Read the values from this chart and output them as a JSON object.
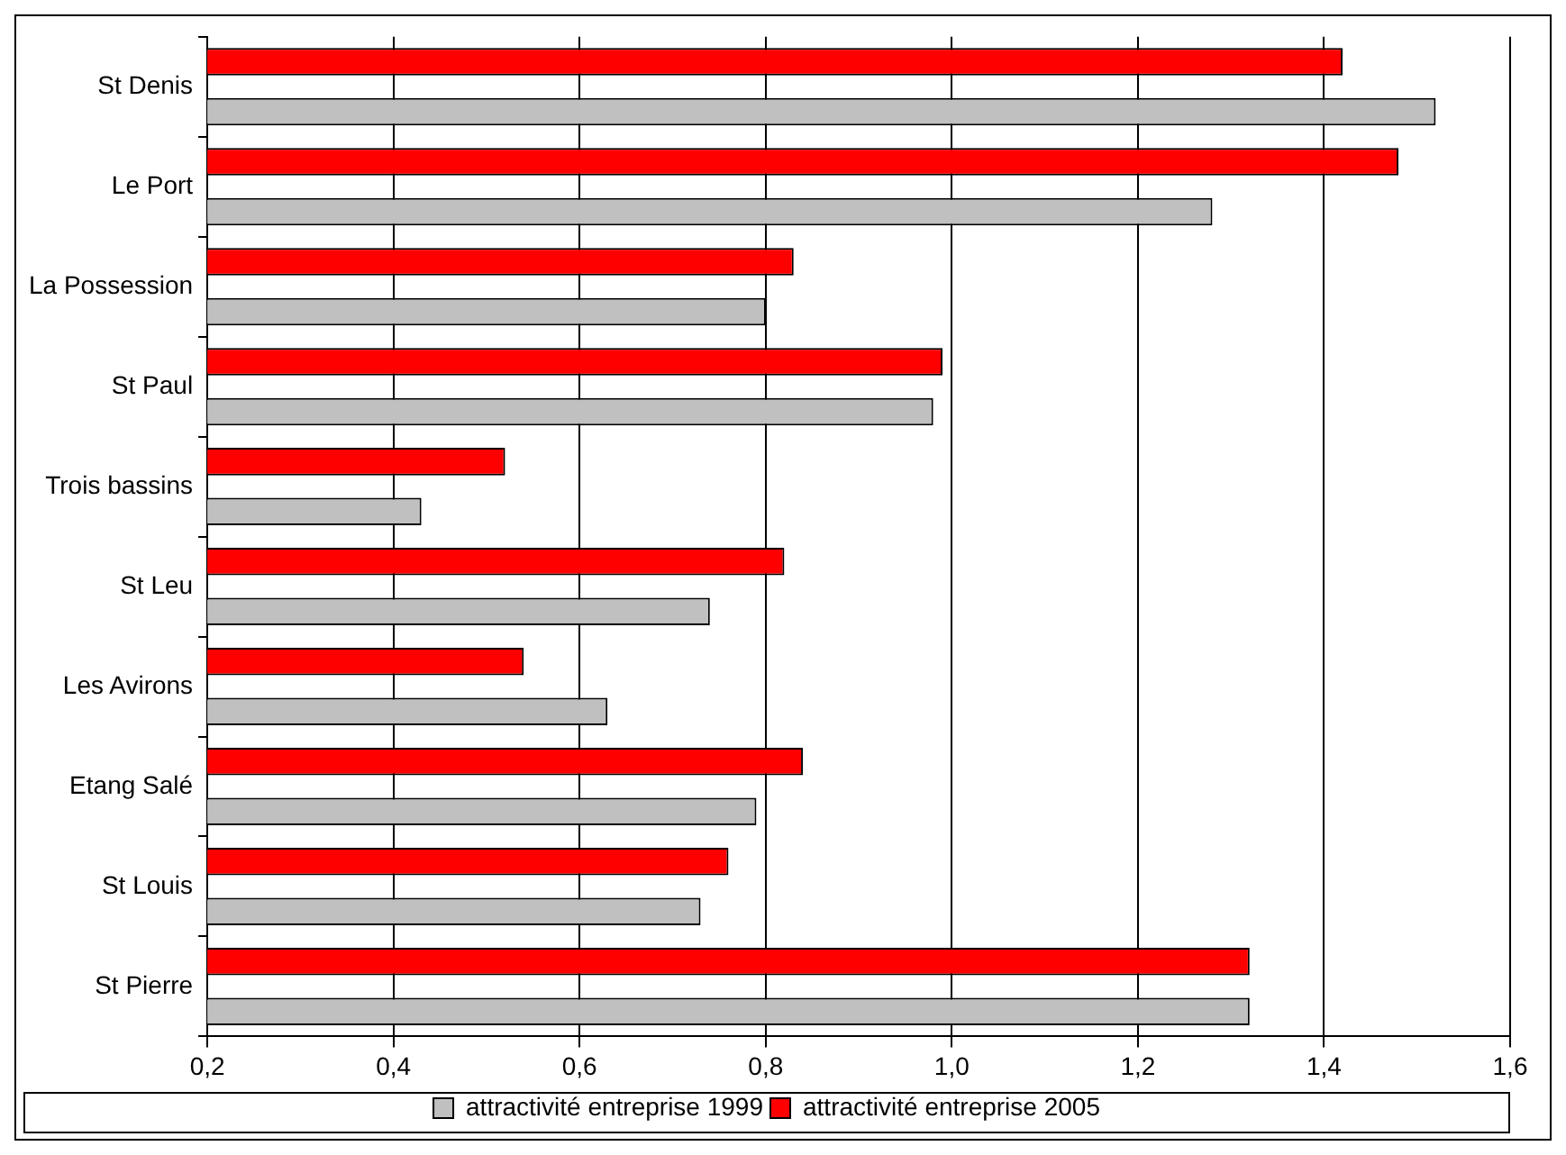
{
  "chart_data": {
    "type": "bar",
    "orientation": "horizontal",
    "categories": [
      "St Denis",
      "Le Port",
      "La Possession",
      "St Paul",
      "Trois bassins",
      "St Leu",
      "Les Avirons",
      "Etang Salé",
      "St Louis",
      "St Pierre"
    ],
    "series": [
      {
        "name": "attractivité entreprise 1999",
        "color": "#c0c0c0",
        "values": [
          1.52,
          1.28,
          0.8,
          0.98,
          0.43,
          0.74,
          0.63,
          0.79,
          0.73,
          1.32
        ]
      },
      {
        "name": "attractivité entreprise 2005",
        "color": "#ff0000",
        "values": [
          1.42,
          1.48,
          0.83,
          0.99,
          0.52,
          0.82,
          0.54,
          0.84,
          0.76,
          1.32
        ]
      }
    ],
    "xlim": [
      0.2,
      1.6
    ],
    "xticks": [
      {
        "value": 0.2,
        "label": "0,2"
      },
      {
        "value": 0.4,
        "label": "0,4"
      },
      {
        "value": 0.6,
        "label": "0,6"
      },
      {
        "value": 0.8,
        "label": "0,8"
      },
      {
        "value": 1.0,
        "label": "1,0"
      },
      {
        "value": 1.2,
        "label": "1,2"
      },
      {
        "value": 1.4,
        "label": "1,4"
      },
      {
        "value": 1.6,
        "label": "1,6"
      }
    ],
    "grid": "x",
    "legend": "bottom"
  }
}
